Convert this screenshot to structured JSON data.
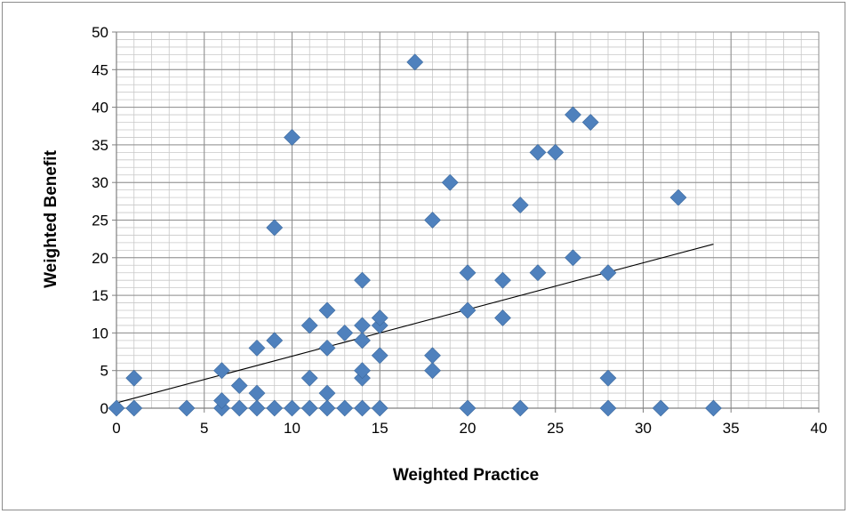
{
  "chart_data": {
    "type": "scatter",
    "title": "",
    "xlabel": "Weighted Practice",
    "ylabel": "Weighted Benefit",
    "xlim": [
      0,
      40
    ],
    "ylim": [
      0,
      50
    ],
    "x_ticks": [
      0,
      5,
      10,
      15,
      20,
      25,
      30,
      35,
      40
    ],
    "y_ticks": [
      0,
      5,
      10,
      15,
      20,
      25,
      30,
      35,
      40,
      45,
      50
    ],
    "x_tick_labels": [
      "0",
      "5",
      "10",
      "15",
      "20",
      "25",
      "30",
      "35",
      "40"
    ],
    "y_tick_labels": [
      "0",
      "5",
      "10",
      "15",
      "20",
      "25",
      "30",
      "35",
      "40",
      "45",
      "50"
    ],
    "grid": true,
    "legend": "none",
    "marker_color": "#4f81bd",
    "trendline_color": "#000000",
    "points": [
      [
        0,
        0
      ],
      [
        1,
        0
      ],
      [
        1,
        4
      ],
      [
        4,
        0
      ],
      [
        6,
        0
      ],
      [
        6,
        1
      ],
      [
        6,
        5
      ],
      [
        7,
        0
      ],
      [
        7,
        3
      ],
      [
        8,
        0
      ],
      [
        8,
        2
      ],
      [
        8,
        8
      ],
      [
        9,
        0
      ],
      [
        9,
        9
      ],
      [
        9,
        24
      ],
      [
        10,
        0
      ],
      [
        10,
        36
      ],
      [
        11,
        0
      ],
      [
        11,
        4
      ],
      [
        11,
        11
      ],
      [
        12,
        0
      ],
      [
        12,
        2
      ],
      [
        12,
        8
      ],
      [
        12,
        13
      ],
      [
        13,
        0
      ],
      [
        13,
        10
      ],
      [
        14,
        0
      ],
      [
        14,
        4
      ],
      [
        14,
        5
      ],
      [
        14,
        9
      ],
      [
        14,
        11
      ],
      [
        14,
        17
      ],
      [
        15,
        0
      ],
      [
        15,
        7
      ],
      [
        15,
        11
      ],
      [
        15,
        12
      ],
      [
        17,
        46
      ],
      [
        18,
        5
      ],
      [
        18,
        7
      ],
      [
        18,
        25
      ],
      [
        19,
        30
      ],
      [
        20,
        0
      ],
      [
        20,
        13
      ],
      [
        20,
        18
      ],
      [
        22,
        12
      ],
      [
        22,
        17
      ],
      [
        23,
        0
      ],
      [
        23,
        27
      ],
      [
        24,
        18
      ],
      [
        24,
        34
      ],
      [
        25,
        34
      ],
      [
        26,
        20
      ],
      [
        26,
        39
      ],
      [
        27,
        38
      ],
      [
        28,
        0
      ],
      [
        28,
        4
      ],
      [
        28,
        18
      ],
      [
        31,
        0
      ],
      [
        32,
        28
      ],
      [
        34,
        0
      ]
    ],
    "trendline": {
      "x": [
        0,
        34
      ],
      "y": [
        0.7,
        21.8
      ]
    }
  }
}
